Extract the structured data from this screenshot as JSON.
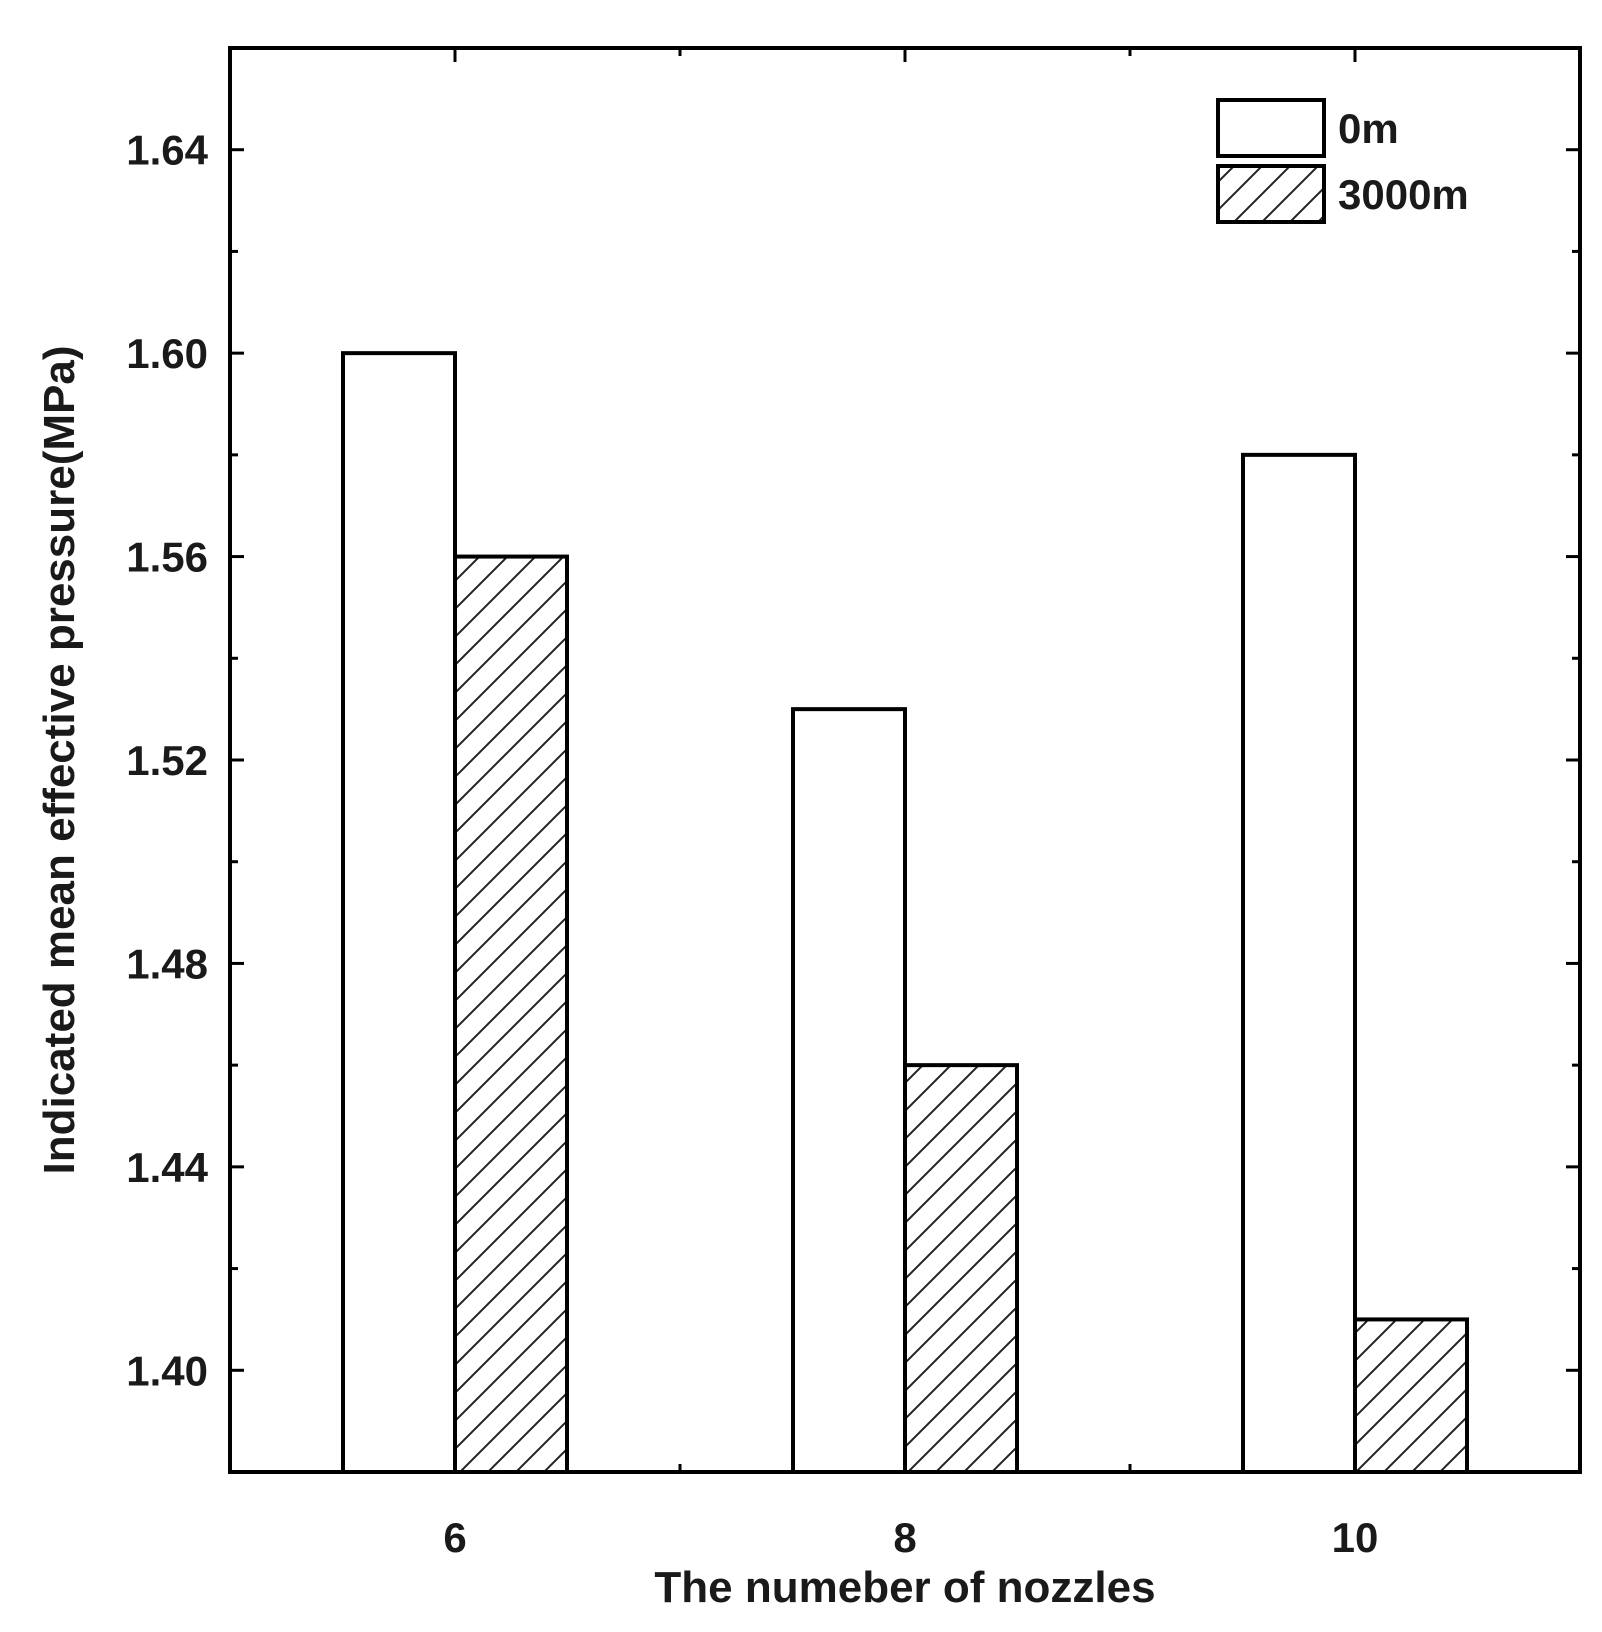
{
  "chart_data": {
    "type": "bar",
    "title": "",
    "xlabel": "The numeber of nozzles",
    "ylabel": "Indicated mean effective pressure(MPa)",
    "categories": [
      "6",
      "8",
      "10"
    ],
    "ylim": [
      1.38,
      1.66
    ],
    "yticks": [
      "1.40",
      "1.44",
      "1.48",
      "1.52",
      "1.56",
      "1.60",
      "1.64"
    ],
    "grid": false,
    "legend_position": "top-right",
    "series": [
      {
        "name": "0m",
        "values": [
          1.6,
          1.53,
          1.58
        ],
        "fill": "none"
      },
      {
        "name": "3000m",
        "values": [
          1.56,
          1.46,
          1.41
        ],
        "fill": "hatched"
      }
    ]
  },
  "colors": {
    "stroke": "#000000",
    "background": "#ffffff"
  }
}
